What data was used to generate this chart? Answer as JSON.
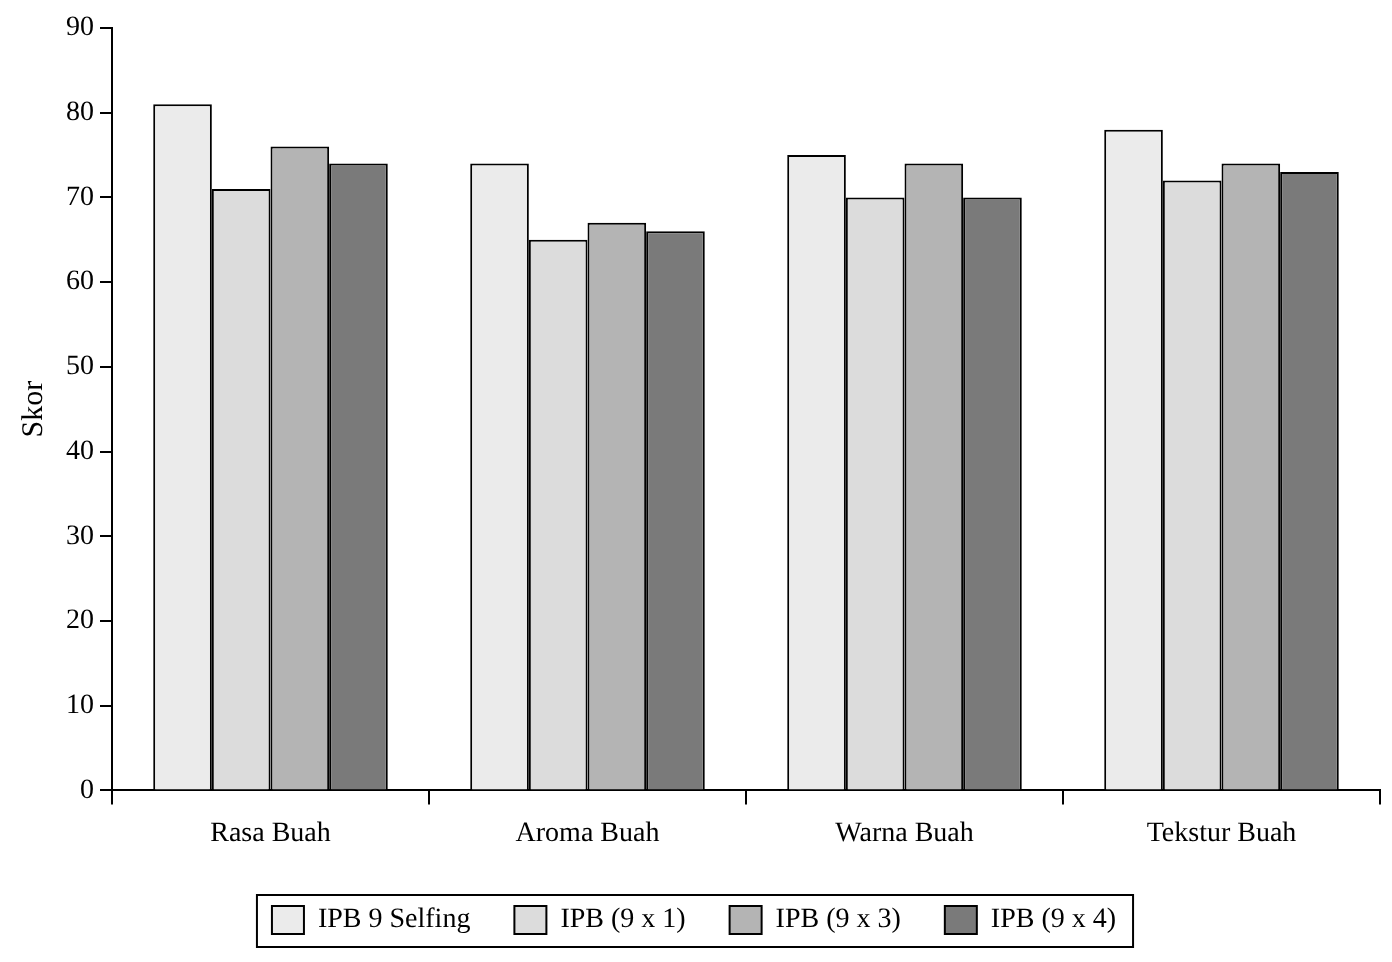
{
  "chart_data": {
    "type": "bar",
    "ylabel": "Skor",
    "categories": [
      "Rasa Buah",
      "Aroma Buah",
      "Warna Buah",
      "Tekstur Buah"
    ],
    "series": [
      {
        "name": "IPB 9 Selfing",
        "color": "#ebebeb",
        "values": [
          81,
          74,
          75,
          78
        ]
      },
      {
        "name": "IPB (9 x 1)",
        "color": "#dcdcdc",
        "values": [
          71,
          65,
          70,
          72
        ]
      },
      {
        "name": "IPB (9 x 3)",
        "color": "#b4b4b4",
        "values": [
          76,
          67,
          74,
          74
        ]
      },
      {
        "name": "IPB (9 x 4)",
        "color": "#7a7a7a",
        "values": [
          74,
          66,
          70,
          73
        ]
      }
    ],
    "ylim": [
      0,
      90
    ],
    "yticks": [
      0,
      10,
      20,
      30,
      40,
      50,
      60,
      70,
      80,
      90
    ],
    "grid": false,
    "legend": "bottom"
  }
}
